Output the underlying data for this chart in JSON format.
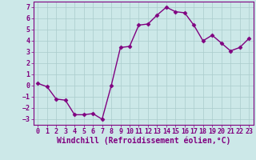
{
  "hours": [
    0,
    1,
    2,
    3,
    4,
    5,
    6,
    7,
    8,
    9,
    10,
    11,
    12,
    13,
    14,
    15,
    16,
    17,
    18,
    19,
    20,
    21,
    22,
    23
  ],
  "values": [
    0.2,
    -0.1,
    -1.2,
    -1.3,
    -2.6,
    -2.6,
    -2.5,
    -3.0,
    0.0,
    3.4,
    3.5,
    5.4,
    5.5,
    6.3,
    7.0,
    6.6,
    6.5,
    5.4,
    4.0,
    4.5,
    3.8,
    3.1,
    3.4,
    4.2
  ],
  "line_color": "#800080",
  "marker": "D",
  "markersize": 2.5,
  "bg_color": "#cce8e8",
  "grid_color": "#aacccc",
  "xlabel": "Windchill (Refroidissement éolien,°C)",
  "xlabel_fontsize": 7,
  "ylim": [
    -3.5,
    7.5
  ],
  "xlim": [
    -0.5,
    23.5
  ],
  "yticks": [
    -3,
    -2,
    -1,
    0,
    1,
    2,
    3,
    4,
    5,
    6,
    7
  ],
  "xticks": [
    0,
    1,
    2,
    3,
    4,
    5,
    6,
    7,
    8,
    9,
    10,
    11,
    12,
    13,
    14,
    15,
    16,
    17,
    18,
    19,
    20,
    21,
    22,
    23
  ],
  "tick_fontsize": 6,
  "tick_color": "#800080",
  "axis_color": "#800080",
  "linewidth": 1.0
}
